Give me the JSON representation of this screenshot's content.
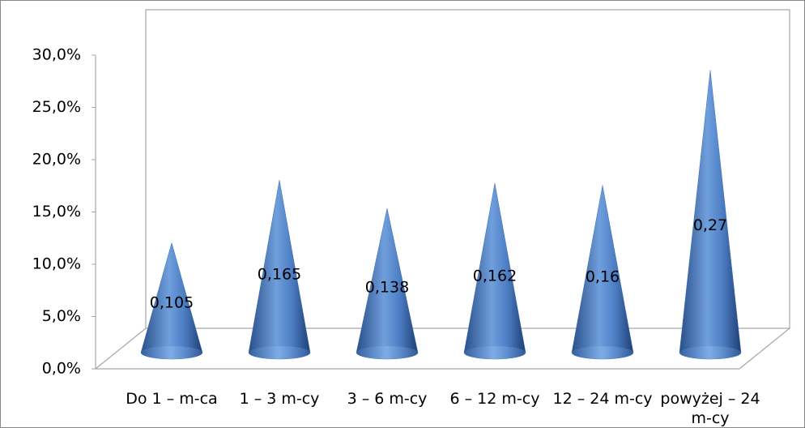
{
  "chart_data": {
    "type": "cone",
    "categories": [
      "Do 1 – m-ca",
      "1 – 3 m-cy",
      "3 – 6 m-cy",
      "6 – 12 m-cy",
      "12 – 24 m-cy",
      "powyżej – 24 m-cy"
    ],
    "values": [
      0.105,
      0.165,
      0.138,
      0.162,
      0.16,
      0.27
    ],
    "value_labels": [
      "0,105",
      "0,165",
      "0,138",
      "0,162",
      "0,16",
      "0,27"
    ],
    "color": "#3f6fb3",
    "ylim": [
      0,
      0.3
    ],
    "yticks": [
      {
        "value": 0,
        "label": "0,0%"
      },
      {
        "value": 0.05,
        "label": "5,0%"
      },
      {
        "value": 0.1,
        "label": "10,0%"
      },
      {
        "value": 0.15,
        "label": "15,0%"
      },
      {
        "value": 0.2,
        "label": "20,0%"
      },
      {
        "value": 0.25,
        "label": "25,0%"
      },
      {
        "value": 0.3,
        "label": "30,0%"
      }
    ]
  }
}
